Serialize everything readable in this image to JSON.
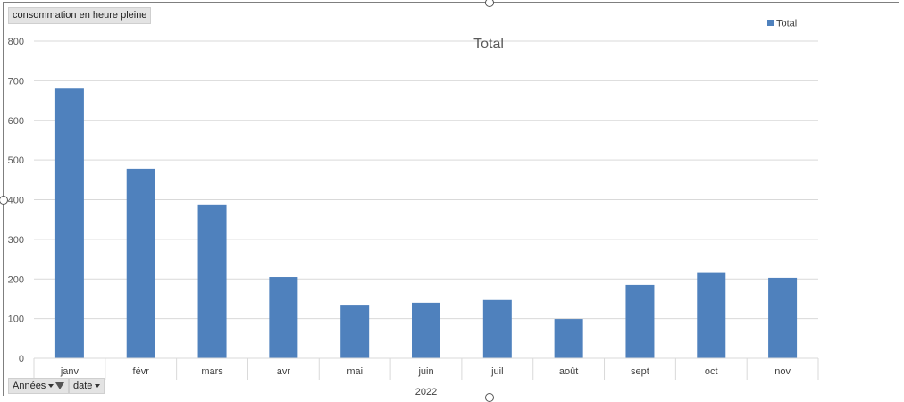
{
  "pivot": {
    "measure_label": "consommation  en heure pleine",
    "filters": [
      {
        "label": "Années",
        "icon": "filter-funnel-icon"
      },
      {
        "label": "date",
        "icon": "dropdown-arrow-icon"
      }
    ]
  },
  "colors": {
    "bar": "#4f81bd",
    "grid": "#d9d9d9",
    "axis_text": "#595959",
    "title": "#595959"
  },
  "chart_data": {
    "type": "bar",
    "title": "Total",
    "legend": {
      "placement": "top-right",
      "entries": [
        "Total"
      ]
    },
    "group_label": "2022",
    "categories": [
      "janv",
      "févr",
      "mars",
      "avr",
      "mai",
      "juin",
      "juil",
      "août",
      "sept",
      "oct",
      "nov"
    ],
    "series": [
      {
        "name": "Total",
        "values": [
          680,
          478,
          388,
          205,
          135,
          140,
          147,
          99,
          185,
          215,
          203
        ]
      }
    ],
    "ylim": [
      0,
      800
    ],
    "yticks": [
      0,
      100,
      200,
      300,
      400,
      500,
      600,
      700,
      800
    ],
    "grid": true,
    "xlabel": "",
    "ylabel": ""
  }
}
